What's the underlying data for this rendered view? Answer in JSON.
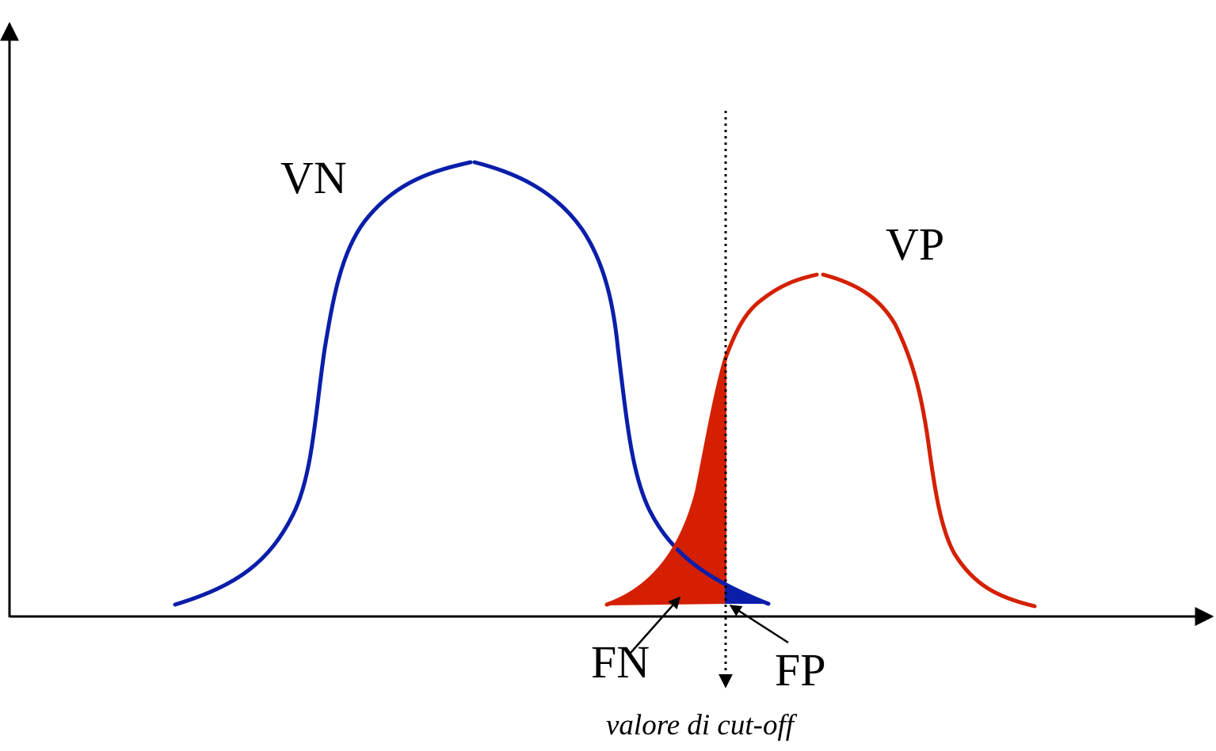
{
  "labels": {
    "negatives": "VN",
    "positives": "VP",
    "false_negatives": "FN",
    "false_positives": "FP",
    "cutoff": "valore di cut-off"
  },
  "colors": {
    "negative_curve": "#0a1eaa",
    "positive_curve": "#d42000",
    "axis": "#000000",
    "cutoff_line": "#000000"
  }
}
